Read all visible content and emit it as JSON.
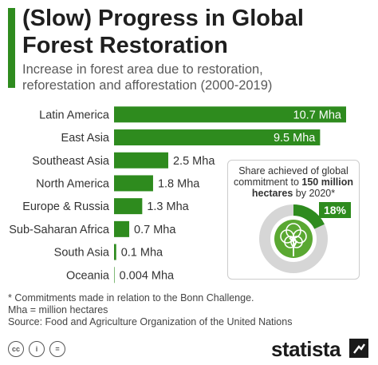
{
  "header": {
    "title_line1": "(Slow) Progress in Global",
    "title_line2": "Forest Restoration",
    "subtitle_line1": "Increase in forest area due to restoration,",
    "subtitle_line2": "reforestation and afforestation (2000-2019)"
  },
  "colors": {
    "accent": "#2e8b1e",
    "bar": "#2e8b1e",
    "ring_track": "#d6d6d6",
    "tree": "#5aa832"
  },
  "chart_data": [
    {
      "type": "bar",
      "orientation": "horizontal",
      "categories": [
        "Latin America",
        "East Asia",
        "Southeast Asia",
        "North America",
        "Europe & Russia",
        "Sub-Saharan Africa",
        "South Asia",
        "Oceania"
      ],
      "values": [
        10.7,
        9.5,
        2.5,
        1.8,
        1.3,
        0.7,
        0.1,
        0.004
      ],
      "value_labels": [
        "10.7 Mha",
        "9.5 Mha",
        "2.5 Mha",
        "1.8 Mha",
        "1.3 Mha",
        "0.7 Mha",
        "0.1 Mha",
        "0.004 Mha"
      ],
      "unit": "Mha",
      "xlim": [
        0,
        10.7
      ]
    },
    {
      "type": "pie",
      "values": [
        18,
        82
      ],
      "share_label": "18%",
      "caption_pre": "Share achieved of global commitment to ",
      "caption_bold": "150 million hectares",
      "caption_post": " by 2020*"
    }
  ],
  "footnotes": {
    "line1": "* Commitments made in relation to the Bonn Challenge.",
    "line2": "Mha = million hectares",
    "line3": "Source: Food and Agriculture Organization of the United Nations"
  },
  "license_icons": [
    "cc-icon",
    "by-icon",
    "nd-icon"
  ],
  "license_labels": [
    "cc",
    "i",
    "="
  ],
  "brand": {
    "logo_text": "statista"
  }
}
